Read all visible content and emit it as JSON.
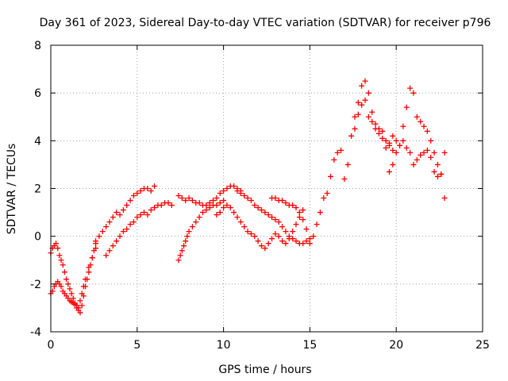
{
  "chart_data": {
    "type": "scatter",
    "title": "Day 361 of 2023, Sidereal Day-to-day VTEC variation (SDTVAR) for receiver p796",
    "xlabel": "GPS time / hours",
    "ylabel": "SDTVAR / TECUs",
    "xlim": [
      0,
      25
    ],
    "ylim": [
      -4,
      8
    ],
    "xticks": [
      "0",
      "5",
      "10",
      "15",
      "20",
      "25"
    ],
    "yticks": [
      "-4",
      "-2",
      "0",
      "2",
      "4",
      "6",
      "8"
    ],
    "grid": true,
    "marker": "plus",
    "color": "#ff0000",
    "series": [
      {
        "name": "SDTVAR",
        "x": [
          0.0,
          0.1,
          0.2,
          0.3,
          0.4,
          0.5,
          0.6,
          0.7,
          0.8,
          0.9,
          1.0,
          1.1,
          1.2,
          1.3,
          1.4,
          1.5,
          1.6,
          1.7,
          1.8,
          1.9,
          2.0,
          2.1,
          2.2,
          2.3,
          2.4,
          2.5,
          2.6,
          0.0,
          0.1,
          0.2,
          0.3,
          0.4,
          0.5,
          0.6,
          0.7,
          0.8,
          0.9,
          1.0,
          1.1,
          1.2,
          1.3,
          1.4,
          1.5,
          1.6,
          1.7,
          1.8,
          1.9,
          2.0,
          2.2,
          2.4,
          2.6,
          2.6,
          2.8,
          3.0,
          3.2,
          3.4,
          3.6,
          3.8,
          4.0,
          4.2,
          4.4,
          4.6,
          4.8,
          5.0,
          5.2,
          5.4,
          5.6,
          5.8,
          6.0,
          3.2,
          3.4,
          3.6,
          3.8,
          4.0,
          4.2,
          4.4,
          4.6,
          4.8,
          5.0,
          5.2,
          5.4,
          5.6,
          5.8,
          6.0,
          6.2,
          6.4,
          6.6,
          6.8,
          7.0,
          7.4,
          7.5,
          7.6,
          7.7,
          7.8,
          7.9,
          8.0,
          8.2,
          8.4,
          8.6,
          8.8,
          9.0,
          9.2,
          9.4,
          9.6,
          9.8,
          10.0,
          7.4,
          7.6,
          7.8,
          8.0,
          8.2,
          8.4,
          8.6,
          8.8,
          9.0,
          9.2,
          9.4,
          9.6,
          9.8,
          10.0,
          10.2,
          10.4,
          10.6,
          10.8,
          11.0,
          9.6,
          9.8,
          10.0,
          10.2,
          10.4,
          10.6,
          10.8,
          11.0,
          11.2,
          11.4,
          11.6,
          11.8,
          12.0,
          12.2,
          12.4,
          12.6,
          12.8,
          13.0,
          13.2,
          13.4,
          13.6,
          13.8,
          14.0,
          14.2,
          14.4,
          14.6,
          10.8,
          11.0,
          11.2,
          11.4,
          11.6,
          11.8,
          12.0,
          12.2,
          12.4,
          12.6,
          12.8,
          13.0,
          13.2,
          13.4,
          13.6,
          13.8,
          14.0,
          14.2,
          14.4,
          14.6,
          14.8,
          15.0,
          12.8,
          13.0,
          13.2,
          13.4,
          13.6,
          13.8,
          14.0,
          14.2,
          14.4,
          14.6,
          14.8,
          15.0,
          15.2,
          15.4,
          15.6,
          15.8,
          16.0,
          16.2,
          16.4,
          16.6,
          16.8,
          17.0,
          17.2,
          17.4,
          17.6,
          17.8,
          18.0,
          18.2,
          18.4,
          18.6,
          18.8,
          19.0,
          19.2,
          19.4,
          19.6,
          19.8,
          17.6,
          17.8,
          18.0,
          18.2,
          18.4,
          18.6,
          18.8,
          19.0,
          19.2,
          19.6,
          19.8,
          20.0,
          20.2,
          20.4,
          20.6,
          20.8,
          21.0,
          21.2,
          21.4,
          21.6,
          21.8,
          22.0,
          22.2,
          22.4,
          22.6,
          22.8,
          19.4,
          19.6,
          19.8,
          20.0,
          20.2,
          20.4,
          20.6,
          20.8,
          21.0,
          21.2,
          21.4,
          21.6,
          21.8,
          22.0,
          22.2,
          22.4,
          22.6,
          22.8
        ],
        "y": [
          -2.4,
          -2.3,
          -2.1,
          -2.0,
          -1.9,
          -2.0,
          -2.1,
          -2.3,
          -2.4,
          -2.5,
          -2.6,
          -2.7,
          -2.75,
          -2.8,
          -2.85,
          -3.0,
          -3.1,
          -3.2,
          -2.9,
          -2.5,
          -2.1,
          -1.8,
          -1.5,
          -1.2,
          -0.9,
          -0.6,
          -0.3,
          -0.7,
          -0.5,
          -0.4,
          -0.3,
          -0.5,
          -0.8,
          -1.0,
          -1.2,
          -1.5,
          -1.8,
          -2.0,
          -2.2,
          -2.4,
          -2.6,
          -2.8,
          -2.9,
          -3.0,
          -2.7,
          -2.4,
          -2.1,
          -1.8,
          -1.3,
          -0.9,
          -0.5,
          -0.2,
          0.0,
          0.2,
          0.4,
          0.6,
          0.8,
          1.0,
          0.9,
          1.1,
          1.3,
          1.5,
          1.7,
          1.8,
          1.9,
          2.0,
          2.0,
          1.9,
          2.1,
          -0.8,
          -0.6,
          -0.4,
          -0.2,
          0.0,
          0.2,
          0.3,
          0.5,
          0.6,
          0.8,
          0.9,
          1.0,
          0.9,
          1.1,
          1.2,
          1.3,
          1.3,
          1.4,
          1.4,
          1.3,
          -1.0,
          -0.8,
          -0.6,
          -0.4,
          -0.2,
          0.0,
          0.2,
          0.4,
          0.6,
          0.8,
          1.0,
          1.1,
          1.2,
          1.3,
          1.3,
          1.4,
          1.5,
          1.7,
          1.6,
          1.5,
          1.6,
          1.5,
          1.4,
          1.4,
          1.3,
          1.3,
          1.4,
          1.5,
          1.6,
          1.8,
          1.9,
          2.0,
          2.1,
          2.1,
          2.0,
          1.9,
          0.9,
          1.0,
          1.2,
          1.3,
          1.2,
          1.0,
          0.8,
          0.6,
          0.4,
          0.2,
          0.1,
          0.0,
          -0.2,
          -0.4,
          -0.5,
          -0.3,
          -0.1,
          0.1,
          0.0,
          -0.2,
          -0.3,
          -0.1,
          0.2,
          0.5,
          0.8,
          1.1,
          1.9,
          1.8,
          1.7,
          1.6,
          1.5,
          1.3,
          1.2,
          1.1,
          1.0,
          0.9,
          0.8,
          0.7,
          0.6,
          0.4,
          0.2,
          0.0,
          -0.1,
          -0.2,
          -0.3,
          -0.3,
          -0.2,
          -0.1,
          1.6,
          1.6,
          1.5,
          1.5,
          1.4,
          1.3,
          1.3,
          1.2,
          1.0,
          0.7,
          0.3,
          -0.3,
          0.0,
          0.5,
          1.0,
          1.6,
          1.8,
          2.5,
          3.2,
          3.5,
          3.6,
          2.4,
          3.0,
          4.2,
          5.0,
          5.6,
          6.3,
          6.5,
          6.0,
          5.2,
          4.5,
          4.3,
          4.1,
          4.0,
          3.8,
          3.6,
          4.5,
          5.1,
          5.5,
          5.7,
          5.0,
          4.8,
          4.7,
          4.5,
          4.4,
          2.7,
          3.0,
          3.5,
          3.8,
          4.0,
          3.7,
          3.5,
          3.0,
          3.2,
          3.4,
          3.5,
          3.6,
          3.3,
          2.7,
          2.5,
          2.6,
          3.5,
          3.7,
          3.9,
          4.2,
          4.0,
          3.8,
          4.6,
          5.4,
          6.2,
          6.0,
          5.0,
          4.8,
          4.6,
          4.4,
          4.0,
          3.5,
          3.0,
          2.6,
          1.6
        ]
      }
    ]
  }
}
